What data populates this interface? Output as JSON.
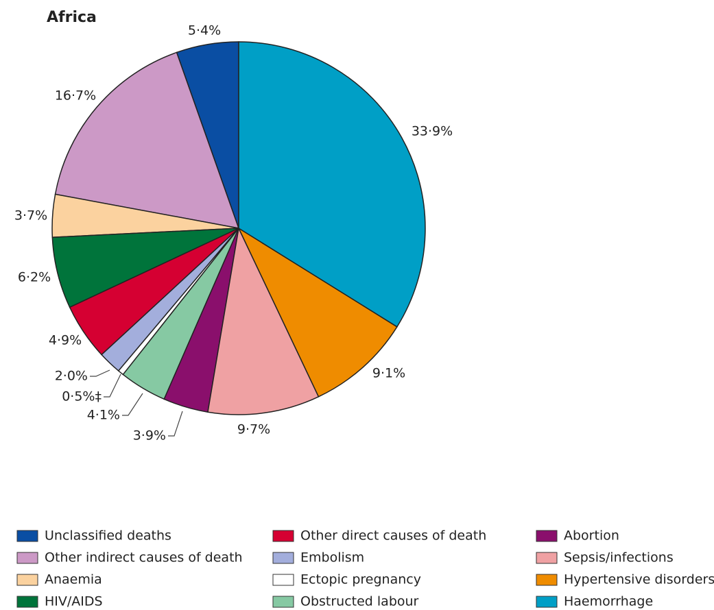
{
  "chart_data": {
    "type": "pie",
    "title": "Africa",
    "categories": [
      "Unclassified deaths",
      "Other indirect causes of death",
      "Anaemia",
      "HIV/AIDS",
      "Other direct causes of death",
      "Embolism",
      "Ectopic pregnancy",
      "Obstructed labour",
      "Abortion",
      "Sepsis/infections",
      "Hypertensive disorders",
      "Haemorrhage"
    ],
    "values": [
      5.4,
      16.7,
      3.7,
      6.2,
      4.9,
      2.0,
      0.5,
      4.1,
      3.9,
      9.7,
      9.1,
      33.9
    ],
    "value_labels": [
      "5·4%",
      "16·7%",
      "3·7%",
      "6·2%",
      "4·9%",
      "2·0%",
      "0·5%‡",
      "4·1%",
      "3·9%",
      "9·7%",
      "9·1%",
      "33·9%"
    ],
    "colors": [
      "#0a4ea3",
      "#cc99c6",
      "#fbd29f",
      "#00743b",
      "#d50032",
      "#a3aedc",
      "#ffffff",
      "#86c9a3",
      "#8a0f6c",
      "#efa1a3",
      "#ef8c00",
      "#009fc6"
    ]
  }
}
